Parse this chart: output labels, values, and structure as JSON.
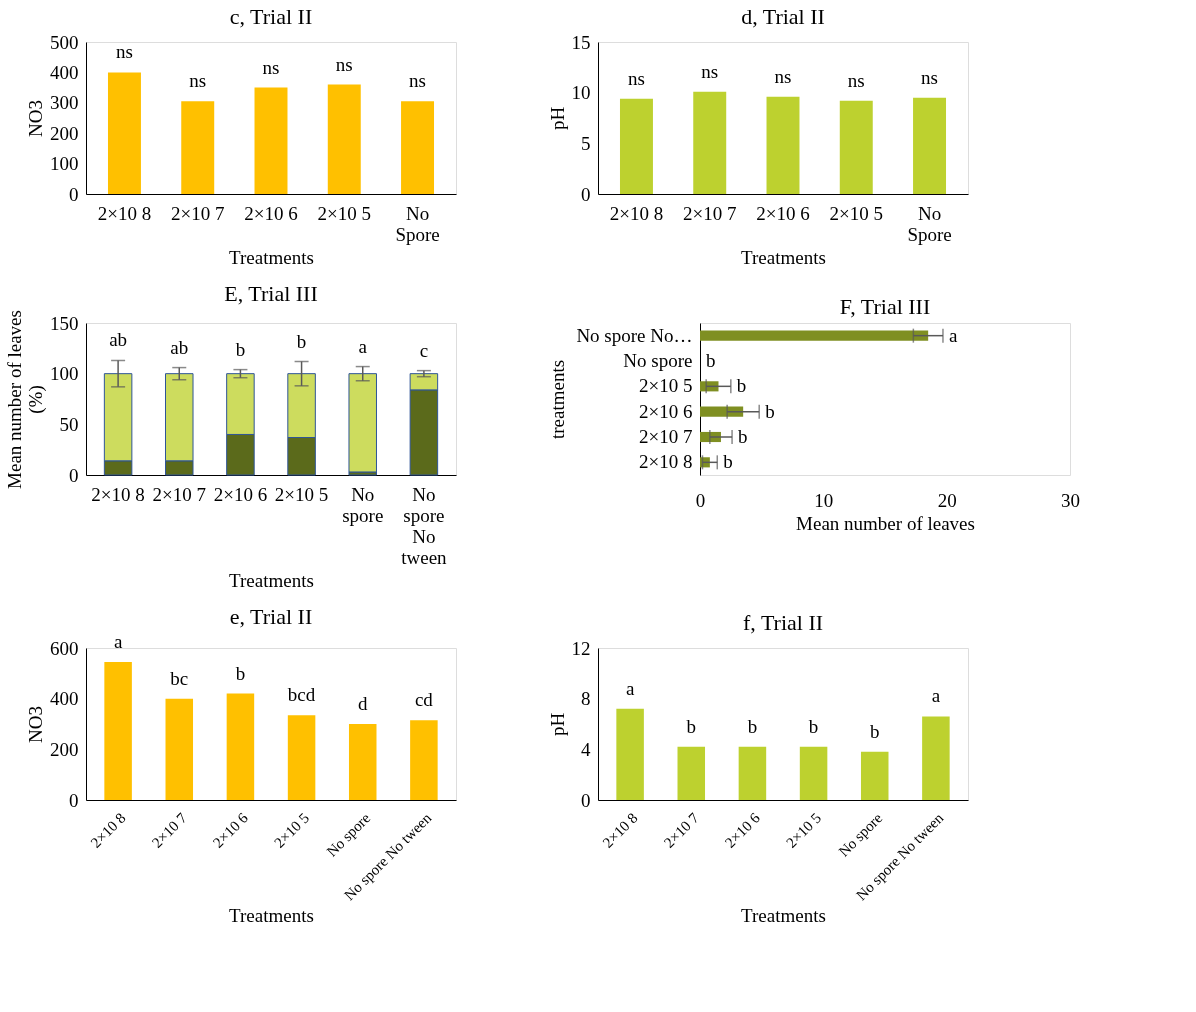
{
  "chart_data": [
    {
      "type": "bar",
      "title": "c, Trial II",
      "xlabel": "Treatments",
      "ylabel": "NO3",
      "categories": [
        "2×10 8",
        "2×10 7",
        "2×10 6",
        "2×10 5",
        "No Spore"
      ],
      "series": [
        {
          "color": "#ffc000",
          "values": [
            400,
            305,
            350,
            360,
            305
          ]
        }
      ],
      "ylim": [
        0,
        500
      ],
      "yticks": [
        0,
        100,
        200,
        300,
        400,
        500
      ],
      "annotations": [
        {
          "text": "ns",
          "x": "2×10 8",
          "y": 400
        },
        {
          "text": "ns",
          "x": "2×10 7",
          "y": 305
        },
        {
          "text": "ns",
          "x": "2×10 6",
          "y": 350
        },
        {
          "text": "ns",
          "x": "2×10 5",
          "y": 360
        },
        {
          "text": "ns",
          "x": "No Spore",
          "y": 305
        }
      ]
    },
    {
      "type": "bar",
      "title": "d, Trial II",
      "xlabel": "Treatments",
      "ylabel": "pH",
      "categories": [
        "2×10 8",
        "2×10 7",
        "2×10 6",
        "2×10 5",
        "No Spore"
      ],
      "series": [
        {
          "color": "#bdd12f",
          "values": [
            9.4,
            10.1,
            9.6,
            9.2,
            9.5
          ]
        }
      ],
      "ylim": [
        0,
        15
      ],
      "yticks": [
        0,
        5,
        10,
        15
      ],
      "annotations": [
        {
          "text": "ns",
          "x": "2×10 8",
          "y": 9.4
        },
        {
          "text": "ns",
          "x": "2×10 7",
          "y": 10.1
        },
        {
          "text": "ns",
          "x": "2×10 6",
          "y": 9.6
        },
        {
          "text": "ns",
          "x": "2×10 5",
          "y": 9.2
        },
        {
          "text": "ns",
          "x": "No Spore",
          "y": 9.5
        }
      ]
    },
    {
      "type": "bar",
      "title": "E,  Trial III",
      "xlabel": "Treatments",
      "ylabel": "Mean number of leaves (%)",
      "stacked": true,
      "categories": [
        "2×10 8",
        "2×10 7",
        "2×10 6",
        "2×10 5",
        "No spore",
        "No spore No tween"
      ],
      "series": [
        {
          "color": "#5b6a1b",
          "values": [
            14,
            14,
            40,
            37,
            3,
            84
          ]
        },
        {
          "color": "#cddc5e",
          "values": [
            86,
            86,
            60,
            63,
            97,
            16
          ],
          "errors": [
            13,
            6,
            4,
            12,
            7,
            3
          ]
        }
      ],
      "ylim": [
        0,
        150
      ],
      "yticks": [
        0,
        50,
        100,
        150
      ],
      "annotations": [
        {
          "text": "ab",
          "x": "2×10 8",
          "y": 113
        },
        {
          "text": "ab",
          "x": "2×10 7",
          "y": 106
        },
        {
          "text": "b",
          "x": "2×10 6",
          "y": 104
        },
        {
          "text": "b",
          "x": "2×10 5",
          "y": 112
        },
        {
          "text": "a",
          "x": "No spore",
          "y": 107
        },
        {
          "text": "c",
          "x": "No spore No tween",
          "y": 103
        }
      ]
    },
    {
      "type": "bar",
      "title": "F,  Trial III",
      "xlabel": "Mean number of leaves",
      "ylabel": "treatments",
      "orientation": "horizontal",
      "categories": [
        "No spore  No…",
        "No spore",
        "2×10 5",
        "2×10 6",
        "2×10 7",
        "2×10 8"
      ],
      "series": [
        {
          "color": "#7f8f22",
          "values": [
            18.5,
            0,
            1.5,
            3.5,
            1.7,
            0.8
          ],
          "errors": [
            1.2,
            null,
            1.0,
            1.3,
            0.9,
            0.6
          ]
        }
      ],
      "xlim": [
        0,
        30
      ],
      "xticks": [
        0,
        10,
        20,
        30
      ],
      "annotations": [
        {
          "text": "a",
          "x": 19.7,
          "y": "No spore  No…"
        },
        {
          "text": "b",
          "x": 0,
          "y": "No spore"
        },
        {
          "text": "b",
          "x": 2.5,
          "y": "2×10 5"
        },
        {
          "text": "b",
          "x": 4.8,
          "y": "2×10 6"
        },
        {
          "text": "b",
          "x": 2.6,
          "y": "2×10 7"
        },
        {
          "text": "b",
          "x": 1.4,
          "y": "2×10 8"
        }
      ]
    },
    {
      "type": "bar",
      "title": "e, Trial II",
      "xlabel": "Treatments",
      "ylabel": "NO3",
      "categories": [
        "2×10 8",
        "2×10 7",
        "2×10 6",
        "2×10 5",
        "No spore",
        "No spore No tween"
      ],
      "series": [
        {
          "color": "#ffc000",
          "values": [
            545,
            400,
            420,
            335,
            300,
            315
          ]
        }
      ],
      "ylim": [
        0,
        600
      ],
      "yticks": [
        0,
        200,
        400,
        600
      ],
      "annotations": [
        {
          "text": "a",
          "x": "2×10 8",
          "y": 545
        },
        {
          "text": "bc",
          "x": "2×10 7",
          "y": 400
        },
        {
          "text": "b",
          "x": "2×10 6",
          "y": 420
        },
        {
          "text": "bcd",
          "x": "2×10 5",
          "y": 335
        },
        {
          "text": "d",
          "x": "No spore",
          "y": 300
        },
        {
          "text": "cd",
          "x": "No spore No tween",
          "y": 315
        }
      ]
    },
    {
      "type": "bar",
      "title": "f, Trial II",
      "xlabel": "Treatments",
      "ylabel": "pH",
      "categories": [
        "2×10 8",
        "2×10 7",
        "2×10 6",
        "2×10 5",
        "No spore",
        "No spore No tween"
      ],
      "series": [
        {
          "color": "#bdd12f",
          "values": [
            7.2,
            4.2,
            4.2,
            4.2,
            3.8,
            6.6
          ]
        }
      ],
      "ylim": [
        0,
        12
      ],
      "yticks": [
        0,
        4,
        8,
        12
      ],
      "annotations": [
        {
          "text": "a",
          "x": "2×10 8",
          "y": 7.2
        },
        {
          "text": "b",
          "x": "2×10 7",
          "y": 4.2
        },
        {
          "text": "b",
          "x": "2×10 6",
          "y": 4.2
        },
        {
          "text": "b",
          "x": "2×10 5",
          "y": 4.2
        },
        {
          "text": "b",
          "x": "No spore",
          "y": 3.8
        },
        {
          "text": "a",
          "x": "No spore No tween",
          "y": 6.6
        }
      ]
    }
  ]
}
